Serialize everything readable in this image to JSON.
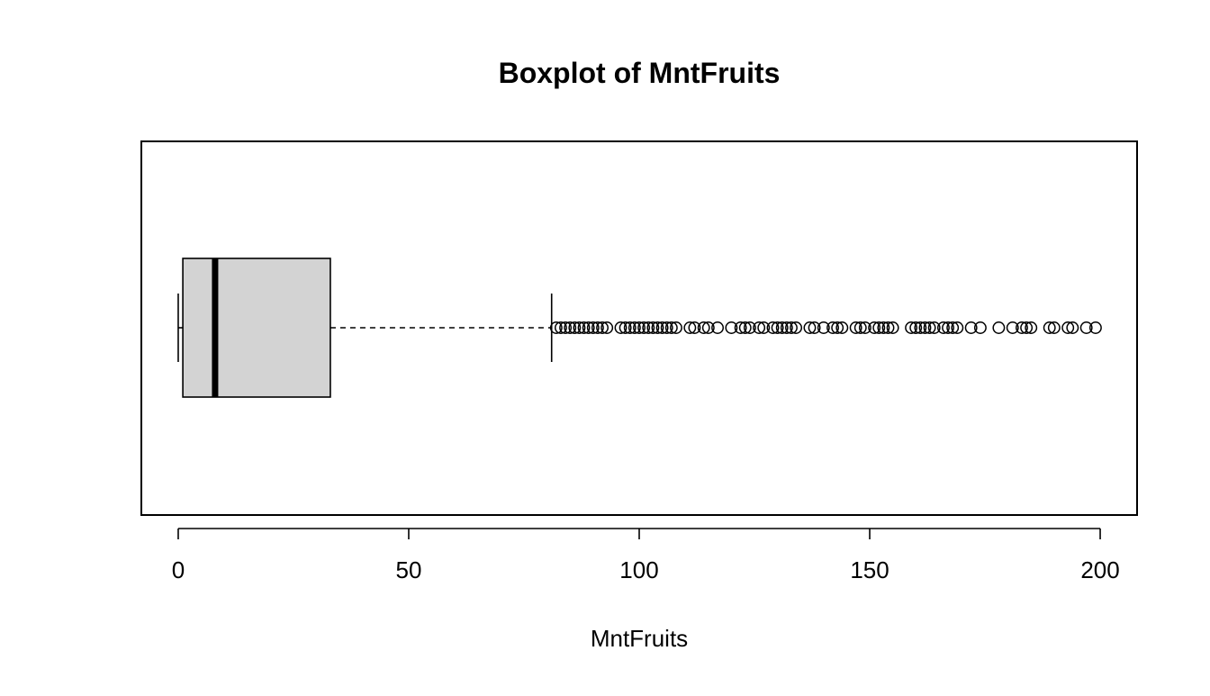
{
  "chart_data": {
    "type": "boxplot",
    "orientation": "horizontal",
    "title": "Boxplot of MntFruits",
    "xlabel": "MntFruits",
    "ylabel": "",
    "xlim": [
      -8,
      208
    ],
    "x_ticks": [
      0,
      50,
      100,
      150,
      200
    ],
    "x_tick_labels": [
      "0",
      "50",
      "100",
      "150",
      "200"
    ],
    "grid": false,
    "box": {
      "whisker_low": 0,
      "q1": 1,
      "median": 8,
      "q3": 33,
      "whisker_high": 81
    },
    "outliers": [
      82,
      83,
      84,
      85,
      86,
      87,
      88,
      89,
      90,
      91,
      92,
      93,
      96,
      97,
      98,
      99,
      100,
      101,
      102,
      103,
      104,
      105,
      106,
      107,
      108,
      111,
      112,
      114,
      115,
      117,
      120,
      122,
      123,
      124,
      126,
      127,
      129,
      130,
      131,
      132,
      133,
      134,
      137,
      138,
      140,
      142,
      143,
      144,
      147,
      148,
      149,
      151,
      152,
      153,
      154,
      155,
      159,
      160,
      161,
      162,
      163,
      164,
      166,
      167,
      168,
      169,
      172,
      174,
      178,
      181,
      183,
      184,
      185,
      189,
      190,
      193,
      194,
      197,
      199
    ],
    "colors": {
      "box_fill": "#d3d3d3",
      "line": "#000000"
    }
  }
}
